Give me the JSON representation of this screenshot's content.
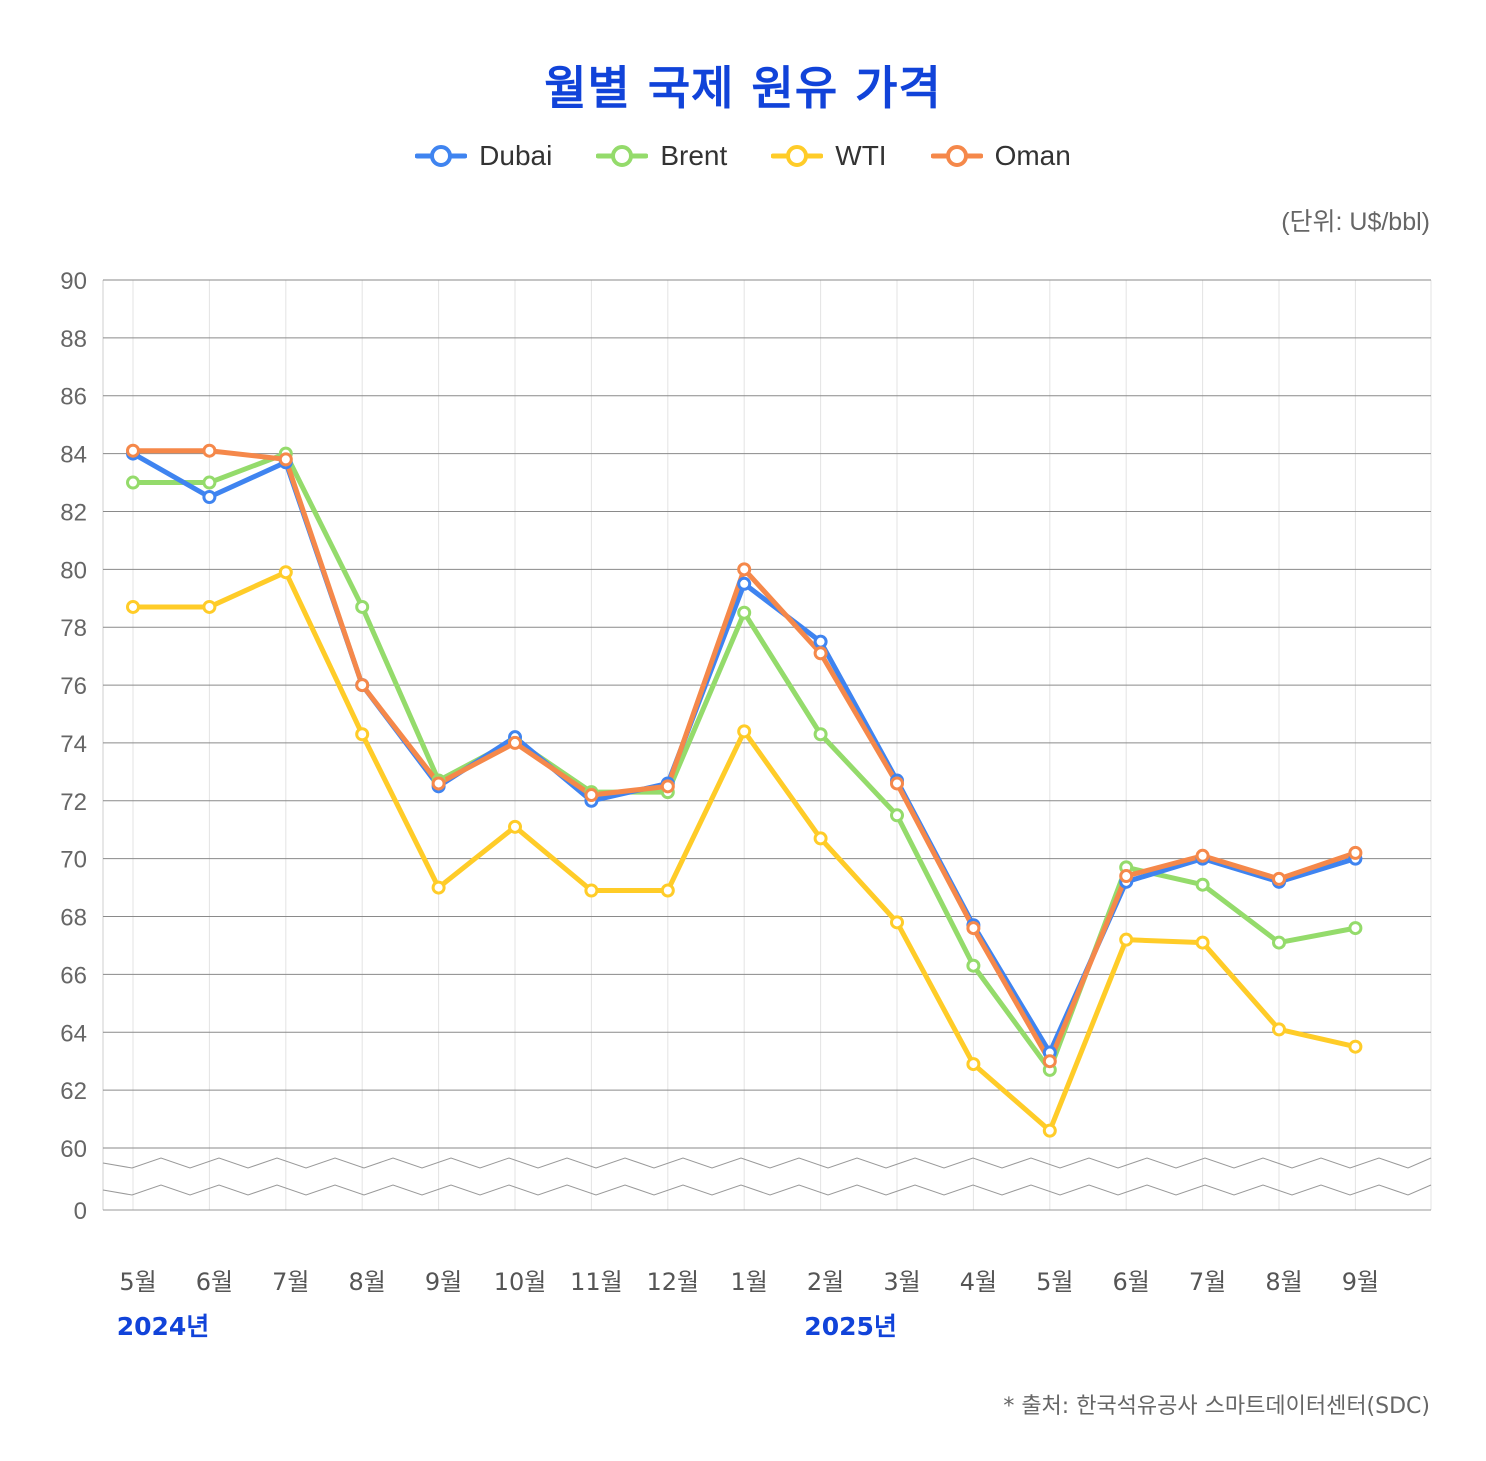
{
  "title": "월별 국제 원유 가격",
  "unit": "(단위: U$/bbl)",
  "source": "* 출처: 한국석유공사 스마트데이터센터(SDC)",
  "legend": [
    {
      "name": "Dubai",
      "color": "#3f84f0"
    },
    {
      "name": "Brent",
      "color": "#94db6b"
    },
    {
      "name": "WTI",
      "color": "#ffcc28"
    },
    {
      "name": "Oman",
      "color": "#f5884a"
    }
  ],
  "chart_data": {
    "type": "line",
    "title": "월별 국제 원유 가격",
    "ylabel": "(단위: U$/bbl)",
    "categories": [
      "5월",
      "6월",
      "7월",
      "8월",
      "9월",
      "10월",
      "11월",
      "12월",
      "1월",
      "2월",
      "3월",
      "4월",
      "5월",
      "6월",
      "7월",
      "8월",
      "9월"
    ],
    "year_labels": [
      {
        "label": "2024년",
        "at": 0
      },
      {
        "label": "2025년",
        "at": 9
      }
    ],
    "yticks": [
      0,
      60,
      62,
      64,
      66,
      68,
      70,
      72,
      74,
      76,
      78,
      80,
      82,
      84,
      86,
      88,
      90
    ],
    "ylim": [
      60,
      90
    ],
    "axis_break": "0-60",
    "legend_position": "top-center",
    "series": [
      {
        "name": "Dubai",
        "color": "#3f84f0",
        "values": [
          84.0,
          82.5,
          83.7,
          76.0,
          72.5,
          74.2,
          72.0,
          72.6,
          79.5,
          77.5,
          72.7,
          67.7,
          63.3,
          69.2,
          70.0,
          69.2,
          70.0
        ]
      },
      {
        "name": "Brent",
        "color": "#94db6b",
        "values": [
          83.0,
          83.0,
          84.0,
          78.7,
          72.7,
          74.1,
          72.3,
          72.3,
          78.5,
          74.3,
          71.5,
          66.3,
          62.7,
          69.7,
          69.1,
          67.1,
          67.6
        ]
      },
      {
        "name": "WTI",
        "color": "#ffcc28",
        "values": [
          78.7,
          78.7,
          79.9,
          74.3,
          69.0,
          71.1,
          68.9,
          68.9,
          74.4,
          70.7,
          67.8,
          62.9,
          60.6,
          67.2,
          67.1,
          64.1,
          63.5
        ]
      },
      {
        "name": "Oman",
        "color": "#f5884a",
        "values": [
          84.1,
          84.1,
          83.8,
          76.0,
          72.6,
          74.0,
          72.2,
          72.5,
          80.0,
          77.1,
          72.6,
          67.6,
          63.0,
          69.4,
          70.1,
          69.3,
          70.2
        ]
      }
    ]
  }
}
